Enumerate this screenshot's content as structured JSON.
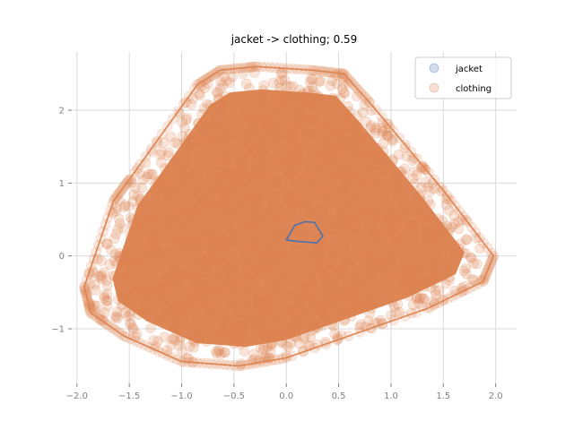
{
  "chart_data": {
    "type": "scatter",
    "title": "jacket -> clothing; 0.59",
    "xlabel": "",
    "ylabel": "",
    "xlim": [
      -2.05,
      2.2
    ],
    "ylim": [
      -1.75,
      2.8
    ],
    "xticks": [
      -2.0,
      -1.5,
      -1.0,
      -0.5,
      0.0,
      0.5,
      1.0,
      1.5,
      2.0
    ],
    "xtick_labels": [
      "−2.0",
      "−1.5",
      "−1.0",
      "−0.5",
      "0.0",
      "0.5",
      "1.0",
      "1.5",
      "2.0"
    ],
    "yticks": [
      -1,
      0,
      1,
      2
    ],
    "ytick_labels": [
      "−1",
      "0",
      "1",
      "2"
    ],
    "grid": true,
    "legend_position": "top-right",
    "series": [
      {
        "name": "jacket",
        "color": "#4c72b0",
        "hull": [
          [
            0.0,
            0.22
          ],
          [
            0.08,
            0.42
          ],
          [
            0.18,
            0.47
          ],
          [
            0.27,
            0.46
          ],
          [
            0.35,
            0.27
          ],
          [
            0.29,
            0.18
          ],
          [
            0.1,
            0.2
          ]
        ]
      },
      {
        "name": "clothing",
        "color": "#dd8452",
        "hull": [
          [
            -1.87,
            -0.78
          ],
          [
            -1.93,
            -0.42
          ],
          [
            -1.65,
            0.76
          ],
          [
            -1.5,
            1.05
          ],
          [
            -0.85,
            2.35
          ],
          [
            -0.63,
            2.55
          ],
          [
            -0.28,
            2.6
          ],
          [
            0.25,
            2.55
          ],
          [
            0.55,
            2.5
          ],
          [
            0.8,
            2.1
          ],
          [
            1.5,
            0.9
          ],
          [
            1.98,
            0.0
          ],
          [
            1.88,
            -0.35
          ],
          [
            1.35,
            -0.72
          ],
          [
            0.0,
            -1.4
          ],
          [
            -0.45,
            -1.51
          ],
          [
            -1.0,
            -1.45
          ],
          [
            -1.55,
            -1.1
          ]
        ]
      }
    ]
  }
}
